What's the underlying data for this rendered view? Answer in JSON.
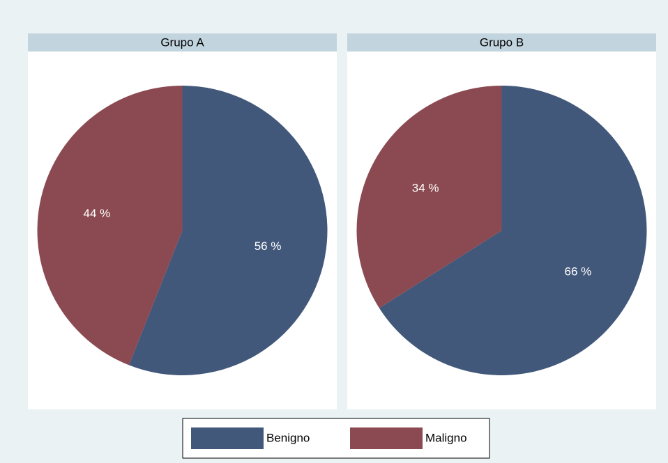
{
  "chart_data": [
    {
      "type": "pie",
      "title": "Grupo A",
      "categories": [
        "Benigno",
        "Maligno"
      ],
      "values": [
        56,
        44
      ],
      "value_labels": [
        "56 %",
        "44 %"
      ],
      "colors": [
        "#42587a",
        "#8b4a51"
      ],
      "legend": "bottom"
    },
    {
      "type": "pie",
      "title": "Grupo B",
      "categories": [
        "Benigno",
        "Maligno"
      ],
      "values": [
        66,
        34
      ],
      "value_labels": [
        "66 %",
        "34 %"
      ],
      "colors": [
        "#42587a",
        "#8b4a51"
      ],
      "legend": "bottom"
    }
  ]
}
